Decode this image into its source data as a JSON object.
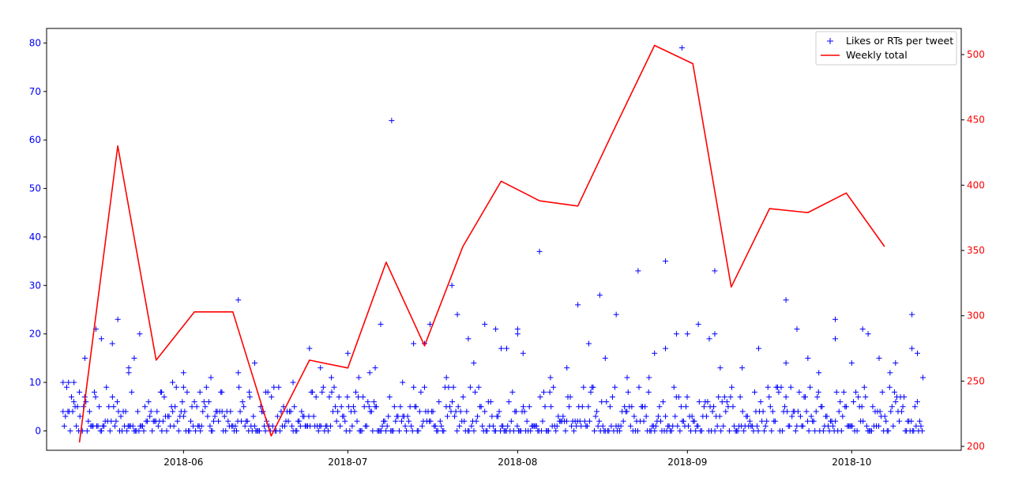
{
  "colors": {
    "left_axis": "#0000ff",
    "right_axis": "#ff0000",
    "scatter": "#0000ff",
    "line": "#ff0000",
    "frame": "#000000",
    "background": "#ffffff"
  },
  "chart_data": {
    "type": "line",
    "title": "",
    "xlabel": "",
    "ylabel": "",
    "x_range": [
      "2018-05-07",
      "2018-10-21"
    ],
    "y_left_range": [
      -4,
      83
    ],
    "y_right_range": [
      197,
      520
    ],
    "x_ticks": [
      "2018-06-01",
      "2018-07-01",
      "2018-08-01",
      "2018-09-01",
      "2018-10-01"
    ],
    "x_tick_labels": [
      "2018-06",
      "2018-07",
      "2018-08",
      "2018-09",
      "2018-10"
    ],
    "y_left_ticks": [
      0,
      10,
      20,
      30,
      40,
      50,
      60,
      70,
      80
    ],
    "y_right_ticks": [
      200,
      250,
      300,
      350,
      400,
      450,
      500
    ],
    "grid": false,
    "legend_position": "top-right",
    "legend": [
      "Likes or RTs per tweet",
      "Weekly total"
    ],
    "series": [
      {
        "name": "Likes or RTs per tweet",
        "axis": "left",
        "marker": "+",
        "x_range": [
          "2018-05-10",
          "2018-10-14"
        ],
        "points": [
          [
            "2018-05-10",
            10
          ],
          [
            "2018-05-11",
            10
          ],
          [
            "2018-05-12",
            10
          ],
          [
            "2018-05-13",
            8
          ],
          [
            "2018-05-14",
            15
          ],
          [
            "2018-05-16",
            21
          ],
          [
            "2018-05-17",
            19
          ],
          [
            "2018-05-19",
            18
          ],
          [
            "2018-05-20",
            23
          ],
          [
            "2018-05-22",
            12
          ],
          [
            "2018-05-22",
            13
          ],
          [
            "2018-05-23",
            15
          ],
          [
            "2018-05-24",
            20
          ],
          [
            "2018-05-28",
            8
          ],
          [
            "2018-05-30",
            10
          ],
          [
            "2018-06-01",
            9
          ],
          [
            "2018-06-01",
            12
          ],
          [
            "2018-06-04",
            8
          ],
          [
            "2018-06-06",
            11
          ],
          [
            "2018-06-08",
            8
          ],
          [
            "2018-06-11",
            12
          ],
          [
            "2018-06-11",
            27
          ],
          [
            "2018-06-13",
            8
          ],
          [
            "2018-06-14",
            14
          ],
          [
            "2018-06-16",
            8
          ],
          [
            "2018-06-21",
            10
          ],
          [
            "2018-06-24",
            17
          ],
          [
            "2018-06-26",
            13
          ],
          [
            "2018-06-28",
            11
          ],
          [
            "2018-07-01",
            16
          ],
          [
            "2018-07-03",
            11
          ],
          [
            "2018-07-05",
            12
          ],
          [
            "2018-07-06",
            13
          ],
          [
            "2018-07-07",
            22
          ],
          [
            "2018-07-09",
            64
          ],
          [
            "2018-07-11",
            10
          ],
          [
            "2018-07-13",
            18
          ],
          [
            "2018-07-15",
            18
          ],
          [
            "2018-07-16",
            22
          ],
          [
            "2018-07-19",
            11
          ],
          [
            "2018-07-20",
            30
          ],
          [
            "2018-07-21",
            24
          ],
          [
            "2018-07-23",
            19
          ],
          [
            "2018-07-24",
            14
          ],
          [
            "2018-07-26",
            22
          ],
          [
            "2018-07-28",
            21
          ],
          [
            "2018-07-29",
            17
          ],
          [
            "2018-07-30",
            17
          ],
          [
            "2018-08-01",
            20
          ],
          [
            "2018-08-01",
            21
          ],
          [
            "2018-08-02",
            16
          ],
          [
            "2018-08-05",
            37
          ],
          [
            "2018-08-07",
            11
          ],
          [
            "2018-08-10",
            13
          ],
          [
            "2018-08-12",
            26
          ],
          [
            "2018-08-14",
            18
          ],
          [
            "2018-08-16",
            28
          ],
          [
            "2018-08-17",
            15
          ],
          [
            "2018-08-19",
            24
          ],
          [
            "2018-08-21",
            11
          ],
          [
            "2018-08-23",
            33
          ],
          [
            "2018-08-25",
            11
          ],
          [
            "2018-08-26",
            16
          ],
          [
            "2018-08-28",
            35
          ],
          [
            "2018-08-28",
            17
          ],
          [
            "2018-08-30",
            20
          ],
          [
            "2018-08-31",
            79
          ],
          [
            "2018-09-01",
            20
          ],
          [
            "2018-09-03",
            22
          ],
          [
            "2018-09-05",
            19
          ],
          [
            "2018-09-06",
            33
          ],
          [
            "2018-09-06",
            20
          ],
          [
            "2018-09-07",
            13
          ],
          [
            "2018-09-11",
            13
          ],
          [
            "2018-09-14",
            17
          ],
          [
            "2018-09-19",
            27
          ],
          [
            "2018-09-19",
            14
          ],
          [
            "2018-09-21",
            21
          ],
          [
            "2018-09-23",
            15
          ],
          [
            "2018-09-25",
            12
          ],
          [
            "2018-09-28",
            23
          ],
          [
            "2018-09-28",
            19
          ],
          [
            "2018-10-01",
            14
          ],
          [
            "2018-10-03",
            21
          ],
          [
            "2018-10-04",
            20
          ],
          [
            "2018-10-06",
            15
          ],
          [
            "2018-10-08",
            12
          ],
          [
            "2018-10-09",
            14
          ],
          [
            "2018-10-12",
            17
          ],
          [
            "2018-10-12",
            24
          ],
          [
            "2018-10-13",
            16
          ],
          [
            "2018-10-14",
            11
          ]
        ]
      },
      {
        "name": "Weekly total",
        "axis": "right",
        "x": [
          "2018-05-13",
          "2018-05-20",
          "2018-05-27",
          "2018-06-03",
          "2018-06-10",
          "2018-06-17",
          "2018-06-24",
          "2018-07-01",
          "2018-07-08",
          "2018-07-15",
          "2018-07-22",
          "2018-07-29",
          "2018-08-05",
          "2018-08-12",
          "2018-08-19",
          "2018-08-26",
          "2018-09-02",
          "2018-09-09",
          "2018-09-16",
          "2018-09-23",
          "2018-09-30",
          "2018-10-07"
        ],
        "values": [
          203,
          430,
          266,
          303,
          303,
          208,
          266,
          260,
          341,
          277,
          353,
          403,
          388,
          384,
          446,
          507,
          493,
          322,
          382,
          379,
          394,
          353
        ]
      }
    ]
  }
}
